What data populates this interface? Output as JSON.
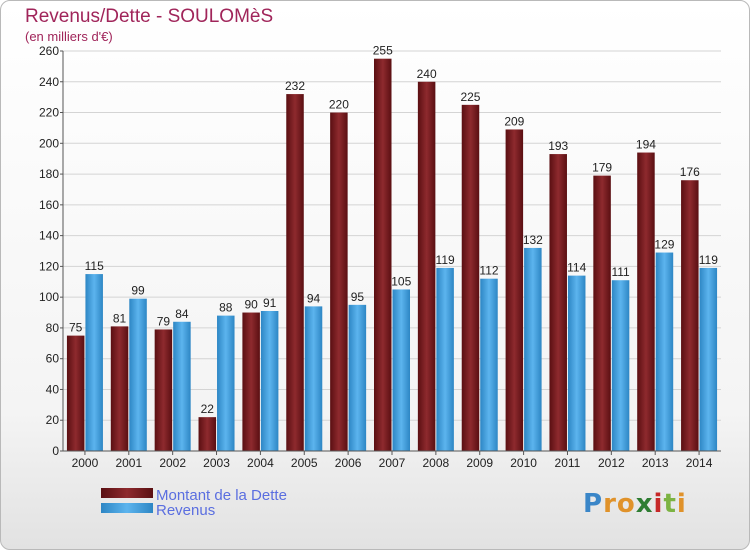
{
  "chart_data": {
    "type": "bar",
    "title": "Revenus/Dette - SOULOMèS",
    "subtitle": "(en milliers d'€)",
    "categories": [
      "2000",
      "2001",
      "2002",
      "2003",
      "2004",
      "2005",
      "2006",
      "2007",
      "2008",
      "2009",
      "2010",
      "2011",
      "2012",
      "2013",
      "2014"
    ],
    "series": [
      {
        "name": "Montant de la Dette",
        "color": "#7a1a1e",
        "values": [
          75,
          81,
          79,
          22,
          90,
          232,
          220,
          255,
          240,
          225,
          209,
          193,
          179,
          194,
          176
        ]
      },
      {
        "name": "Revenus",
        "color": "#3a9de0",
        "values": [
          115,
          99,
          84,
          88,
          91,
          94,
          95,
          105,
          119,
          112,
          132,
          114,
          111,
          129,
          119
        ]
      }
    ],
    "ylim": [
      0,
      260
    ],
    "yticks": [
      0,
      20,
      40,
      60,
      80,
      100,
      120,
      140,
      160,
      180,
      200,
      220,
      240,
      260
    ],
    "grid": true,
    "legend": "bottom-left"
  },
  "branding": {
    "logo_text": "Proxiti"
  }
}
